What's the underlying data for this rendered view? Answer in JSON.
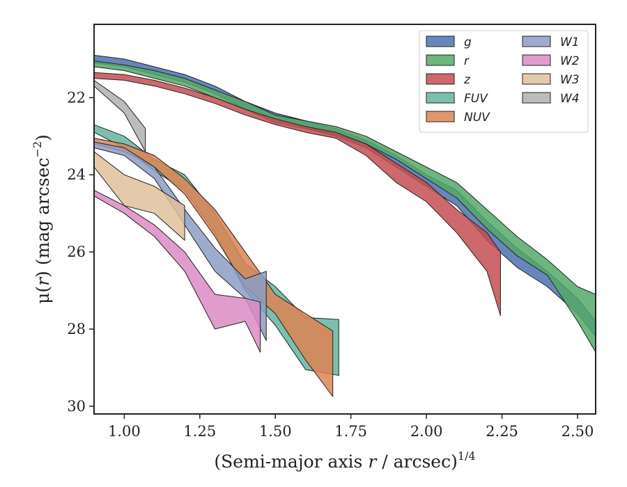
{
  "chart_data": {
    "type": "area",
    "xlabel": {
      "main": "(Semi-major axis ",
      "var": "r",
      "rest": " / arcsec)",
      "sup": "1/4"
    },
    "ylabel": {
      "mu": "μ(",
      "var": "r",
      "rest": ") (mag arcsec",
      "sup": "−2",
      "close": ")"
    },
    "xlim": [
      0.9,
      2.56
    ],
    "ylim": [
      30.2,
      20.1
    ],
    "y_inverted": true,
    "xticks": [
      1.0,
      1.25,
      1.5,
      1.75,
      2.0,
      2.25,
      2.5
    ],
    "xtick_labels": [
      "1.00",
      "1.25",
      "1.50",
      "1.75",
      "2.00",
      "2.25",
      "2.50"
    ],
    "yticks": [
      22,
      24,
      26,
      28,
      30
    ],
    "ytick_labels": [
      "22",
      "24",
      "26",
      "28",
      "30"
    ],
    "grid": false,
    "legend_position": "top-right",
    "series": [
      {
        "name": "g",
        "color": "#4c72b0",
        "upper": [
          [
            0.9,
            20.9
          ],
          [
            1.0,
            21.0
          ],
          [
            1.1,
            21.2
          ],
          [
            1.2,
            21.4
          ],
          [
            1.3,
            21.7
          ],
          [
            1.4,
            22.1
          ],
          [
            1.5,
            22.4
          ],
          [
            1.6,
            22.6
          ],
          [
            1.7,
            22.8
          ],
          [
            1.8,
            23.1
          ],
          [
            1.9,
            23.5
          ],
          [
            2.0,
            24.0
          ],
          [
            2.1,
            24.4
          ],
          [
            2.2,
            25.2
          ],
          [
            2.3,
            25.9
          ],
          [
            2.4,
            26.5
          ],
          [
            2.5,
            27.2
          ],
          [
            2.56,
            27.8
          ]
        ],
        "lower": [
          [
            0.9,
            21.1
          ],
          [
            1.0,
            21.2
          ],
          [
            1.1,
            21.4
          ],
          [
            1.2,
            21.6
          ],
          [
            1.3,
            21.9
          ],
          [
            1.4,
            22.3
          ],
          [
            1.5,
            22.6
          ],
          [
            1.6,
            22.8
          ],
          [
            1.7,
            23.0
          ],
          [
            1.8,
            23.3
          ],
          [
            1.9,
            23.8
          ],
          [
            2.0,
            24.3
          ],
          [
            2.1,
            24.8
          ],
          [
            2.2,
            25.7
          ],
          [
            2.3,
            26.4
          ],
          [
            2.4,
            26.9
          ],
          [
            2.5,
            27.6
          ],
          [
            2.56,
            28.2
          ]
        ]
      },
      {
        "name": "r",
        "color": "#55a868",
        "upper": [
          [
            0.9,
            21.05
          ],
          [
            1.0,
            21.15
          ],
          [
            1.1,
            21.3
          ],
          [
            1.2,
            21.5
          ],
          [
            1.3,
            21.8
          ],
          [
            1.4,
            22.1
          ],
          [
            1.5,
            22.45
          ],
          [
            1.6,
            22.6
          ],
          [
            1.7,
            22.75
          ],
          [
            1.8,
            23.0
          ],
          [
            1.9,
            23.4
          ],
          [
            2.0,
            23.8
          ],
          [
            2.1,
            24.2
          ],
          [
            2.2,
            24.9
          ],
          [
            2.3,
            25.6
          ],
          [
            2.4,
            26.2
          ],
          [
            2.5,
            26.9
          ],
          [
            2.56,
            27.1
          ]
        ],
        "lower": [
          [
            0.9,
            21.2
          ],
          [
            1.0,
            21.3
          ],
          [
            1.1,
            21.5
          ],
          [
            1.2,
            21.7
          ],
          [
            1.3,
            22.0
          ],
          [
            1.4,
            22.3
          ],
          [
            1.5,
            22.65
          ],
          [
            1.6,
            22.8
          ],
          [
            1.7,
            22.95
          ],
          [
            1.8,
            23.2
          ],
          [
            1.9,
            23.6
          ],
          [
            2.0,
            24.1
          ],
          [
            2.1,
            24.6
          ],
          [
            2.2,
            25.4
          ],
          [
            2.3,
            26.1
          ],
          [
            2.4,
            26.6
          ],
          [
            2.5,
            27.8
          ],
          [
            2.56,
            28.6
          ]
        ]
      },
      {
        "name": "z",
        "color": "#c44e52",
        "upper": [
          [
            0.9,
            21.35
          ],
          [
            1.0,
            21.4
          ],
          [
            1.1,
            21.55
          ],
          [
            1.2,
            21.75
          ],
          [
            1.3,
            22.0
          ],
          [
            1.4,
            22.3
          ],
          [
            1.5,
            22.55
          ],
          [
            1.6,
            22.75
          ],
          [
            1.7,
            22.9
          ],
          [
            1.8,
            23.2
          ],
          [
            1.9,
            23.7
          ],
          [
            2.0,
            24.2
          ],
          [
            2.1,
            24.9
          ],
          [
            2.2,
            25.5
          ],
          [
            2.245,
            26.0
          ]
        ],
        "lower": [
          [
            0.9,
            21.5
          ],
          [
            1.0,
            21.55
          ],
          [
            1.1,
            21.7
          ],
          [
            1.2,
            21.9
          ],
          [
            1.3,
            22.15
          ],
          [
            1.4,
            22.45
          ],
          [
            1.5,
            22.7
          ],
          [
            1.6,
            22.9
          ],
          [
            1.7,
            23.05
          ],
          [
            1.8,
            23.5
          ],
          [
            1.9,
            24.2
          ],
          [
            2.0,
            24.7
          ],
          [
            2.1,
            25.5
          ],
          [
            2.2,
            26.5
          ],
          [
            2.245,
            27.65
          ]
        ]
      },
      {
        "name": "FUV",
        "color": "#64b5a0",
        "upper": [
          [
            0.9,
            22.7
          ],
          [
            1.0,
            23.0
          ],
          [
            1.1,
            23.6
          ],
          [
            1.2,
            24.0
          ],
          [
            1.3,
            25.0
          ],
          [
            1.4,
            26.3
          ],
          [
            1.5,
            26.9
          ],
          [
            1.6,
            27.7
          ],
          [
            1.71,
            27.75
          ]
        ],
        "lower": [
          [
            0.9,
            22.9
          ],
          [
            1.0,
            23.3
          ],
          [
            1.1,
            23.9
          ],
          [
            1.2,
            24.4
          ],
          [
            1.3,
            25.5
          ],
          [
            1.4,
            27.0
          ],
          [
            1.5,
            27.9
          ],
          [
            1.6,
            29.05
          ],
          [
            1.71,
            29.2
          ]
        ]
      },
      {
        "name": "NUV",
        "color": "#dd8452",
        "upper": [
          [
            0.9,
            23.05
          ],
          [
            1.0,
            23.2
          ],
          [
            1.1,
            23.5
          ],
          [
            1.2,
            24.1
          ],
          [
            1.3,
            24.9
          ],
          [
            1.4,
            26.0
          ],
          [
            1.5,
            27.1
          ],
          [
            1.6,
            27.6
          ],
          [
            1.69,
            28.05
          ]
        ],
        "lower": [
          [
            0.9,
            23.2
          ],
          [
            1.0,
            23.4
          ],
          [
            1.1,
            23.8
          ],
          [
            1.2,
            24.5
          ],
          [
            1.3,
            25.6
          ],
          [
            1.4,
            26.9
          ],
          [
            1.5,
            27.6
          ],
          [
            1.6,
            28.8
          ],
          [
            1.69,
            29.75
          ]
        ]
      },
      {
        "name": "W1",
        "color": "#8c9dc4",
        "upper": [
          [
            0.9,
            23.15
          ],
          [
            1.0,
            23.3
          ],
          [
            1.1,
            23.8
          ],
          [
            1.2,
            24.9
          ],
          [
            1.3,
            25.9
          ],
          [
            1.4,
            26.7
          ],
          [
            1.47,
            26.5
          ]
        ],
        "lower": [
          [
            0.9,
            23.3
          ],
          [
            1.0,
            23.5
          ],
          [
            1.1,
            24.1
          ],
          [
            1.2,
            25.3
          ],
          [
            1.3,
            26.5
          ],
          [
            1.4,
            27.2
          ],
          [
            1.47,
            28.3
          ]
        ]
      },
      {
        "name": "W2",
        "color": "#da8bc3",
        "upper": [
          [
            0.9,
            24.4
          ],
          [
            1.0,
            24.8
          ],
          [
            1.1,
            25.3
          ],
          [
            1.2,
            26.0
          ],
          [
            1.3,
            27.1
          ],
          [
            1.4,
            27.2
          ],
          [
            1.45,
            27.3
          ]
        ],
        "lower": [
          [
            0.9,
            24.55
          ],
          [
            1.0,
            25.0
          ],
          [
            1.1,
            25.6
          ],
          [
            1.2,
            26.5
          ],
          [
            1.3,
            28.0
          ],
          [
            1.4,
            27.8
          ],
          [
            1.45,
            28.6
          ]
        ]
      },
      {
        "name": "W3",
        "color": "#dfc19b",
        "upper": [
          [
            0.9,
            23.4
          ],
          [
            1.0,
            24.0
          ],
          [
            1.1,
            24.3
          ],
          [
            1.2,
            24.8
          ]
        ],
        "lower": [
          [
            0.9,
            23.8
          ],
          [
            1.0,
            24.8
          ],
          [
            1.1,
            25.0
          ],
          [
            1.2,
            25.7
          ]
        ]
      },
      {
        "name": "W4",
        "color": "#b0b0b0",
        "upper": [
          [
            0.9,
            21.55
          ],
          [
            1.0,
            22.1
          ],
          [
            1.07,
            22.8
          ]
        ],
        "lower": [
          [
            0.9,
            21.7
          ],
          [
            1.0,
            22.4
          ],
          [
            1.07,
            23.4
          ]
        ]
      }
    ]
  }
}
